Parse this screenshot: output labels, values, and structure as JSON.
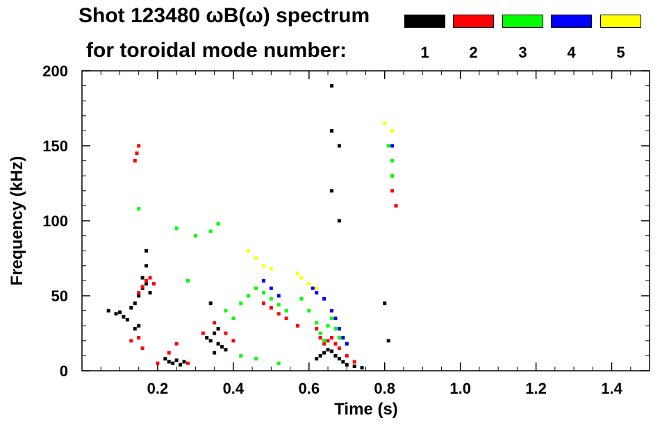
{
  "header": {
    "title_line1": "Shot 123480 ωB(ω) spectrum",
    "title_line2": "for toroidal mode number:"
  },
  "legend": [
    {
      "label": "1",
      "color": "#000000"
    },
    {
      "label": "2",
      "color": "#ff0000"
    },
    {
      "label": "3",
      "color": "#00ff00"
    },
    {
      "label": "4",
      "color": "#0000ff"
    },
    {
      "label": "5",
      "color": "#ffff00"
    }
  ],
  "chart_data": {
    "type": "scatter",
    "title": "Shot 123480 ωB(ω) spectrum for toroidal mode number:",
    "xlabel": "Time (s)",
    "ylabel": "Frequency (kHz)",
    "xlim": [
      0.0,
      1.5
    ],
    "ylim": [
      0,
      200
    ],
    "xticks": [
      0.2,
      0.4,
      0.6,
      0.8,
      1.0,
      1.2,
      1.4
    ],
    "xtick_labels": [
      "0.2",
      "0.4",
      "0.6",
      "0.8",
      "1.0",
      "1.2",
      "1.4"
    ],
    "yticks": [
      0,
      50,
      100,
      150,
      200
    ],
    "ytick_labels": [
      "0",
      "50",
      "100",
      "150",
      "200"
    ],
    "grid": false,
    "legend_position": "top",
    "series": [
      {
        "name": "1",
        "color": "#000000",
        "points": [
          [
            0.07,
            40
          ],
          [
            0.09,
            38
          ],
          [
            0.1,
            39
          ],
          [
            0.11,
            36
          ],
          [
            0.12,
            34
          ],
          [
            0.13,
            42
          ],
          [
            0.14,
            45
          ],
          [
            0.15,
            50
          ],
          [
            0.16,
            55
          ],
          [
            0.17,
            58
          ],
          [
            0.18,
            52
          ],
          [
            0.15,
            30
          ],
          [
            0.14,
            28
          ],
          [
            0.16,
            62
          ],
          [
            0.17,
            70
          ],
          [
            0.17,
            80
          ],
          [
            0.22,
            8
          ],
          [
            0.23,
            6
          ],
          [
            0.24,
            5
          ],
          [
            0.25,
            7
          ],
          [
            0.26,
            4
          ],
          [
            0.27,
            6
          ],
          [
            0.33,
            22
          ],
          [
            0.34,
            20
          ],
          [
            0.35,
            25
          ],
          [
            0.36,
            18
          ],
          [
            0.37,
            16
          ],
          [
            0.35,
            12
          ],
          [
            0.36,
            28
          ],
          [
            0.38,
            14
          ],
          [
            0.34,
            45
          ],
          [
            0.62,
            8
          ],
          [
            0.63,
            10
          ],
          [
            0.64,
            12
          ],
          [
            0.65,
            14
          ],
          [
            0.66,
            13
          ],
          [
            0.67,
            10
          ],
          [
            0.68,
            8
          ],
          [
            0.69,
            6
          ],
          [
            0.7,
            4
          ],
          [
            0.72,
            3
          ],
          [
            0.74,
            2
          ],
          [
            0.66,
            120
          ],
          [
            0.66,
            160
          ],
          [
            0.66,
            190
          ],
          [
            0.68,
            100
          ],
          [
            0.68,
            150
          ],
          [
            0.81,
            20
          ],
          [
            0.8,
            45
          ]
        ]
      },
      {
        "name": "2",
        "color": "#ff0000",
        "points": [
          [
            0.14,
            140
          ],
          [
            0.145,
            145
          ],
          [
            0.15,
            150
          ],
          [
            0.15,
            52
          ],
          [
            0.16,
            56
          ],
          [
            0.17,
            60
          ],
          [
            0.18,
            62
          ],
          [
            0.19,
            58
          ],
          [
            0.13,
            20
          ],
          [
            0.15,
            22
          ],
          [
            0.16,
            15
          ],
          [
            0.2,
            5
          ],
          [
            0.23,
            12
          ],
          [
            0.25,
            18
          ],
          [
            0.28,
            5
          ],
          [
            0.32,
            25
          ],
          [
            0.35,
            32
          ],
          [
            0.38,
            25
          ],
          [
            0.4,
            20
          ],
          [
            0.48,
            45
          ],
          [
            0.5,
            42
          ],
          [
            0.52,
            38
          ],
          [
            0.54,
            35
          ],
          [
            0.57,
            30
          ],
          [
            0.62,
            28
          ],
          [
            0.63,
            22
          ],
          [
            0.64,
            18
          ],
          [
            0.65,
            20
          ],
          [
            0.66,
            22
          ],
          [
            0.67,
            18
          ],
          [
            0.68,
            15
          ],
          [
            0.7,
            10
          ],
          [
            0.72,
            6
          ],
          [
            0.82,
            130
          ],
          [
            0.82,
            120
          ],
          [
            0.83,
            110
          ]
        ]
      },
      {
        "name": "3",
        "color": "#00ff00",
        "points": [
          [
            0.15,
            108
          ],
          [
            0.25,
            95
          ],
          [
            0.28,
            60
          ],
          [
            0.3,
            90
          ],
          [
            0.34,
            93
          ],
          [
            0.36,
            98
          ],
          [
            0.38,
            40
          ],
          [
            0.4,
            35
          ],
          [
            0.42,
            45
          ],
          [
            0.44,
            50
          ],
          [
            0.46,
            55
          ],
          [
            0.48,
            52
          ],
          [
            0.5,
            48
          ],
          [
            0.52,
            44
          ],
          [
            0.54,
            40
          ],
          [
            0.58,
            48
          ],
          [
            0.6,
            40
          ],
          [
            0.62,
            32
          ],
          [
            0.63,
            25
          ],
          [
            0.64,
            20
          ],
          [
            0.65,
            30
          ],
          [
            0.66,
            35
          ],
          [
            0.67,
            28
          ],
          [
            0.68,
            22
          ],
          [
            0.7,
            18
          ],
          [
            0.42,
            10
          ],
          [
            0.46,
            8
          ],
          [
            0.52,
            5
          ],
          [
            0.81,
            150
          ],
          [
            0.82,
            140
          ],
          [
            0.82,
            130
          ]
        ]
      },
      {
        "name": "4",
        "color": "#0000ff",
        "points": [
          [
            0.48,
            60
          ],
          [
            0.5,
            55
          ],
          [
            0.52,
            50
          ],
          [
            0.61,
            55
          ],
          [
            0.62,
            52
          ],
          [
            0.64,
            48
          ],
          [
            0.66,
            40
          ],
          [
            0.67,
            35
          ],
          [
            0.68,
            28
          ],
          [
            0.69,
            22
          ],
          [
            0.7,
            18
          ],
          [
            0.82,
            150
          ]
        ]
      },
      {
        "name": "5",
        "color": "#ffff00",
        "points": [
          [
            0.44,
            80
          ],
          [
            0.46,
            75
          ],
          [
            0.48,
            70
          ],
          [
            0.5,
            68
          ],
          [
            0.57,
            65
          ],
          [
            0.58,
            62
          ],
          [
            0.6,
            58
          ],
          [
            0.62,
            55
          ],
          [
            0.8,
            165
          ],
          [
            0.82,
            160
          ]
        ]
      }
    ]
  }
}
